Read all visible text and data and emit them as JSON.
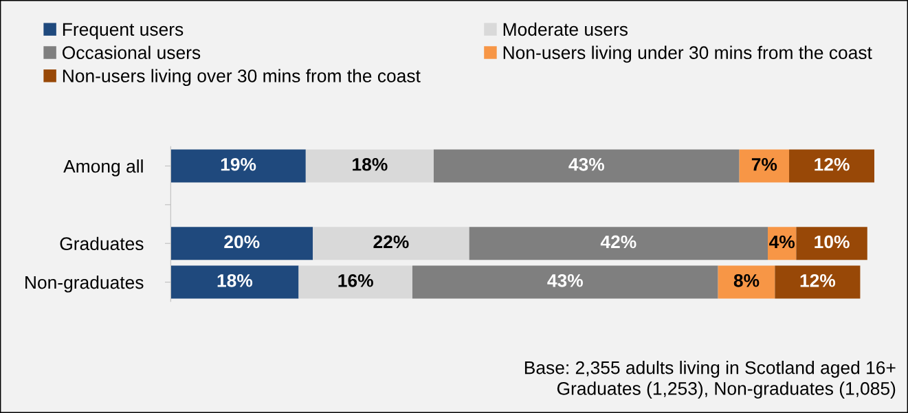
{
  "chart_data": {
    "type": "bar",
    "orientation": "horizontal",
    "stacked": true,
    "legend": "top",
    "categories": [
      "Among all",
      null,
      "Graduates",
      "Non-graduates"
    ],
    "series": [
      {
        "name": "Frequent users",
        "color": "#1f497d",
        "values": [
          19,
          null,
          20,
          18
        ],
        "value_labels": [
          "19%",
          null,
          "20%",
          "18%"
        ]
      },
      {
        "name": "Moderate users",
        "color": "#d9d9d9",
        "values": [
          18,
          null,
          22,
          16
        ],
        "value_labels": [
          "18%",
          null,
          "22%",
          "16%"
        ]
      },
      {
        "name": "Occasional users",
        "color": "#7f7f7f",
        "values": [
          43,
          null,
          42,
          43
        ],
        "value_labels": [
          "43%",
          null,
          "42%",
          "43%"
        ]
      },
      {
        "name": "Non-users living under 30 mins from the coast",
        "color": "#f79646",
        "values": [
          7,
          null,
          4,
          8
        ],
        "value_labels": [
          "7%",
          null,
          "4%",
          "8%"
        ]
      },
      {
        "name": "Non-users living over 30 mins from the coast",
        "color": "#984807",
        "values": [
          12,
          null,
          10,
          12
        ],
        "value_labels": [
          "12%",
          null,
          "10%",
          "12%"
        ]
      }
    ],
    "annotations": [
      "Base: 2,355 adults living in Scotland aged 16+\nGraduates (1,253), Non-graduates (1,085)"
    ]
  }
}
